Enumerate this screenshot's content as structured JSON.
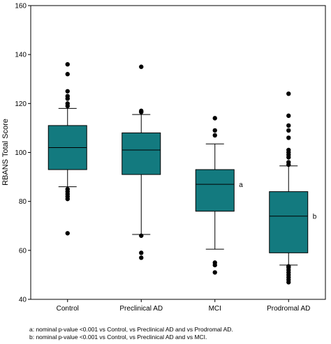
{
  "chart_data": {
    "type": "box",
    "ylabel": "RBANS Total Score",
    "ylim": [
      40,
      160
    ],
    "yticks": [
      40,
      60,
      80,
      100,
      120,
      140,
      160
    ],
    "grid": false,
    "box_color": "#137A7F",
    "categories": [
      "Control",
      "Preclinical AD",
      "MCI",
      "Prodromal AD"
    ],
    "boxes": [
      {
        "category": "Control",
        "whisker_low": 86,
        "q1": 93,
        "median": 102,
        "q3": 111,
        "whisker_high": 118,
        "outliers": [
          67,
          81,
          82,
          83,
          84,
          85,
          119,
          120,
          122,
          123,
          125,
          132,
          136
        ]
      },
      {
        "category": "Preclinical AD",
        "whisker_low": 66.5,
        "q1": 91,
        "median": 101,
        "q3": 108,
        "whisker_high": 115.5,
        "outliers": [
          57,
          59,
          66,
          116.5,
          117,
          135
        ]
      },
      {
        "category": "MCI",
        "whisker_low": 60.5,
        "q1": 76,
        "median": 87,
        "q3": 93,
        "whisker_high": 103.5,
        "annotation": "a",
        "outliers": [
          51,
          54,
          55,
          107,
          109,
          114
        ]
      },
      {
        "category": "Prodromal AD",
        "whisker_low": 54,
        "q1": 59,
        "median": 74,
        "q3": 84,
        "whisker_high": 94.5,
        "annotation": "b",
        "outliers": [
          47,
          48,
          49,
          50,
          51,
          52,
          53,
          53.5,
          95,
          96,
          98,
          99,
          100,
          101,
          106,
          109,
          111,
          115,
          124
        ]
      }
    ]
  },
  "footnotes": [
    "a: nominal p-value <0.001 vs Control, vs Preclinical AD and vs Prodromal AD.",
    "b: nominal p-value <0.001 vs Control, vs Preclinical AD and vs MCI."
  ]
}
